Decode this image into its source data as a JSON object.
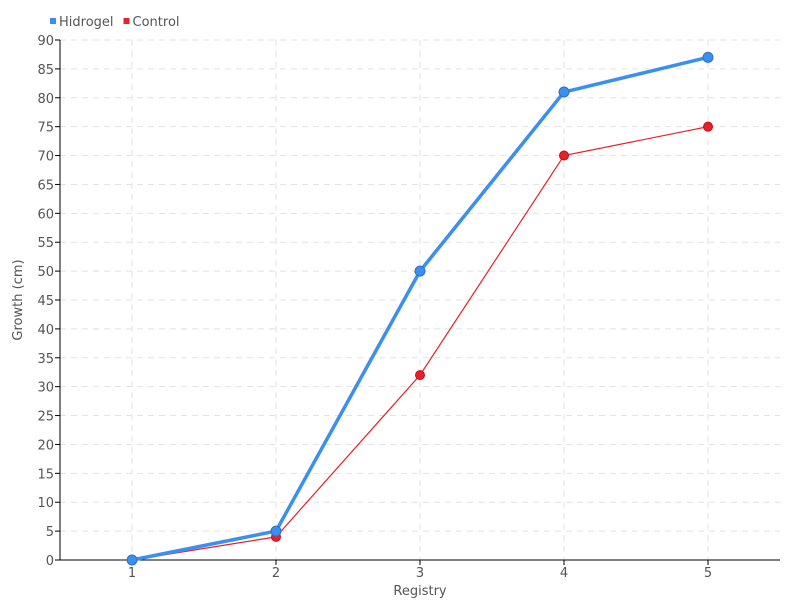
{
  "chart_data": {
    "type": "line",
    "title": "",
    "xlabel": "Registry",
    "ylabel": "Growth (cm)",
    "categories": [
      "1",
      "2",
      "3",
      "4",
      "5"
    ],
    "ylim": [
      0,
      90
    ],
    "ytick_step": 5,
    "grid": true,
    "legend_placement": "top-left",
    "series": [
      {
        "name": "Hidrogel",
        "color": "#3b8ff0",
        "values": [
          0,
          5,
          50,
          81,
          87
        ]
      },
      {
        "name": "Control",
        "color": "#e8202a",
        "values": [
          0,
          4,
          32,
          70,
          75
        ]
      }
    ]
  }
}
